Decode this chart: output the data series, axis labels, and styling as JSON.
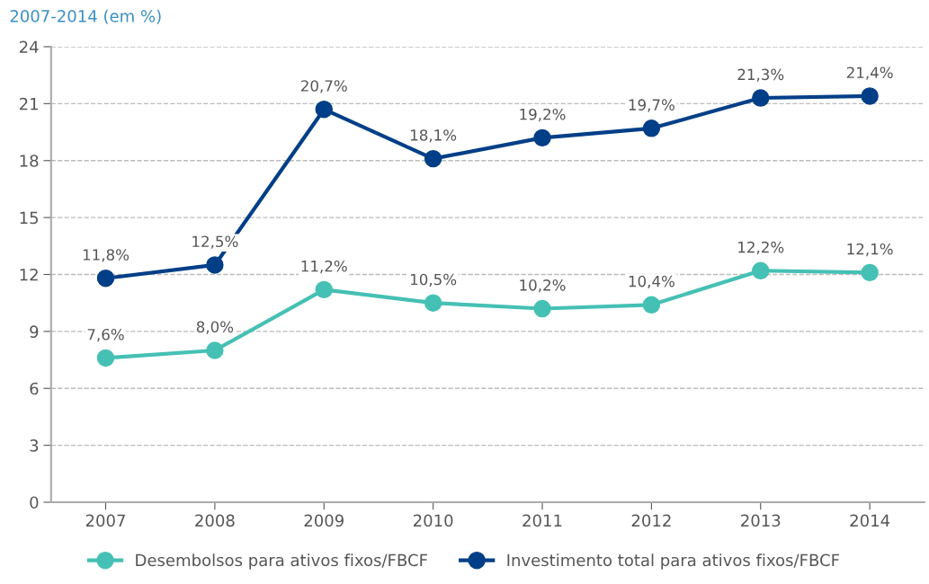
{
  "chart_data": {
    "type": "line",
    "title": "2007-2014 (em %)",
    "categories": [
      "2007",
      "2008",
      "2009",
      "2010",
      "2011",
      "2012",
      "2013",
      "2014"
    ],
    "series": [
      {
        "name": "Desembolsos para ativos fixos/FBCF",
        "color": "#45c0b4",
        "values": [
          7.6,
          8.0,
          11.2,
          10.5,
          10.2,
          10.4,
          12.2,
          12.1
        ],
        "value_labels": [
          "7,6%",
          "8,0%",
          "11,2%",
          "10,5%",
          "10,2%",
          "10,4%",
          "12,2%",
          "12,1%"
        ]
      },
      {
        "name": "Investimento total para ativos fixos/FBCF",
        "color": "#003f87",
        "values": [
          11.8,
          12.5,
          20.7,
          18.1,
          19.2,
          19.7,
          21.3,
          21.4
        ],
        "value_labels": [
          "11,8%",
          "12,5%",
          "20,7%",
          "18,1%",
          "19,2%",
          "19,7%",
          "21,3%",
          "21,4%"
        ]
      }
    ],
    "ylim": [
      0,
      24
    ],
    "yticks": [
      0,
      3,
      6,
      9,
      12,
      15,
      18,
      21,
      24
    ],
    "grid": "y",
    "legend": "bottom",
    "marker": "circle",
    "line_style": "solid"
  }
}
